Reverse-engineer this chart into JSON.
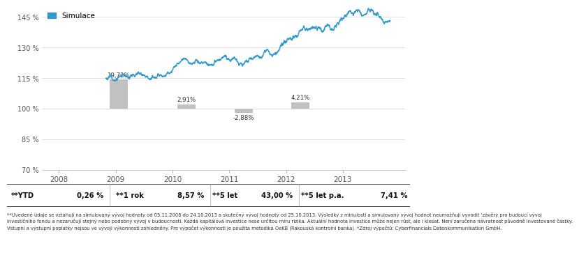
{
  "legend_label": "Simulace",
  "legend_color": "#3399cc",
  "bar_positions": [
    2009.05,
    2010.25,
    2011.25,
    2012.25
  ],
  "bar_values": [
    19.72,
    2.91,
    -2.88,
    4.21
  ],
  "bar_labels": [
    "19,72%",
    "2,91%",
    "-2,88%",
    "4,21%"
  ],
  "bar_width": 0.32,
  "bar_color": "#bbbbbb",
  "ylim": [
    70,
    150
  ],
  "yticks": [
    70,
    85,
    100,
    115,
    130,
    145
  ],
  "yticklabels": [
    "70 %",
    "85 %",
    "100 %",
    "115 %",
    "130 %",
    "145 %"
  ],
  "xlim_start": 2007.7,
  "xlim_end": 2014.1,
  "xticks": [
    2008,
    2009,
    2010,
    2011,
    2012,
    2013
  ],
  "xticklabels": [
    "2008",
    "2009",
    "2010",
    "2011",
    "2012",
    "2013"
  ],
  "line_color": "#3399cc",
  "line_width": 1.1,
  "grid_color": "#dddddd",
  "stats_items": [
    {
      "label": "**YTD",
      "value": "0,26 %"
    },
    {
      "label": "**1 rok",
      "value": "8,57 %"
    },
    {
      "label": "**5 let",
      "value": "43,00 %"
    },
    {
      "label": "**5 let p.a.",
      "value": "7,41 %"
    }
  ],
  "footnote_lines": [
    "**Uvedené údaje se vztahují na simulovaný vývoj hodnoty od 05.11.2008 do 24.10.2013 a skutečný vývoj hodnoty od 25.10.2013. Výsledky z minulosti a simulovaný vývoj hodnot neumožňují vyvodit ‘závěry pro budoucí vývoj",
    "investičního fondu a nezaručují stejný nebo podobný vývoj v budoucnosti. Každá kapitálová investice nese určitou míru rizika. Aktuální hodnota investice může nejen růst, ale i klesat. Není zaručena návratnost původně investované částky.",
    "Vstupní a výstupní poplatky nejsou ve vývoji výkonnosti zohledněny. Pro výpočet výkonnosti je použita metodika OeKB (Rakouská kontrolní banka). *Zdroj výpočtů: Cyberfinancials Datenkommunikation GmbH."
  ]
}
